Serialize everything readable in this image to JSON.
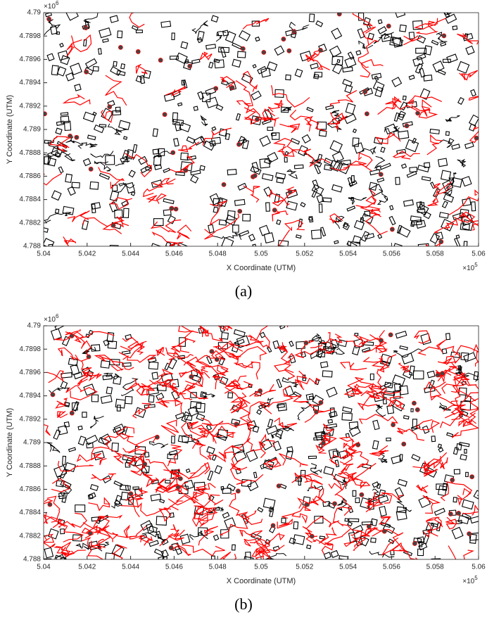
{
  "chart_data": [
    {
      "type": "map",
      "x_label": "X Coordinate (UTM)",
      "y_label": "Y Coordinate (UTM)",
      "x_multiplier": "×10",
      "x_multiplier_exponent": "5",
      "y_multiplier": "×10",
      "y_multiplier_exponent": "6",
      "xlim": [
        5.04,
        5.06
      ],
      "ylim": [
        4.788,
        4.79
      ],
      "xticks": [
        5.04,
        5.042,
        5.044,
        5.046,
        5.048,
        5.05,
        5.052,
        5.054,
        5.056,
        5.058,
        5.06
      ],
      "yticks": [
        4.788,
        4.7882,
        4.7884,
        4.7886,
        4.7888,
        4.789,
        4.7892,
        4.7894,
        4.7896,
        4.7898,
        4.79
      ],
      "building_color": "#000000",
      "route_color": "#ff0000",
      "caption": "(a)"
    },
    {
      "type": "map",
      "x_label": "X Coordinate (UTM)",
      "y_label": "Y Coordinate (UTM)",
      "x_multiplier": "×10",
      "x_multiplier_exponent": "5",
      "y_multiplier": "×10",
      "y_multiplier_exponent": "6",
      "xlim": [
        5.04,
        5.06
      ],
      "ylim": [
        4.788,
        4.79
      ],
      "xticks": [
        5.04,
        5.042,
        5.044,
        5.046,
        5.048,
        5.05,
        5.052,
        5.054,
        5.056,
        5.058,
        5.06
      ],
      "yticks": [
        4.788,
        4.7882,
        4.7884,
        4.7886,
        4.7888,
        4.789,
        4.7892,
        4.7894,
        4.7896,
        4.7898,
        4.79
      ],
      "building_color": "#000000",
      "route_color": "#ff0000",
      "caption": "(b)"
    }
  ]
}
